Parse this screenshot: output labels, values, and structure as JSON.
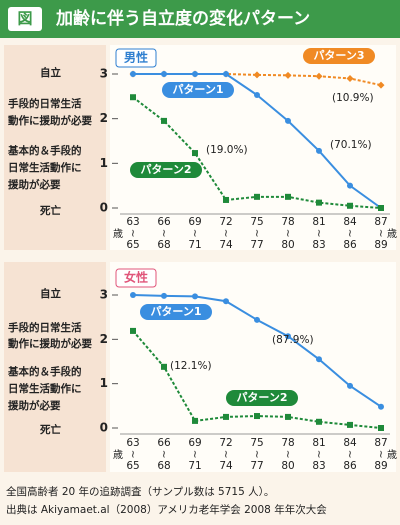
{
  "header": {
    "badge": "図",
    "title": "加齢に伴う自立度の変化パターン"
  },
  "chart_data": [
    {
      "type": "line",
      "panel_label": "男性",
      "age_unit": "歳",
      "categories": [
        "63～65",
        "66～68",
        "69～71",
        "72～74",
        "75～77",
        "78～80",
        "81～83",
        "84～86",
        "87～89"
      ],
      "ylim": [
        0,
        3
      ],
      "yticks": [
        0,
        1,
        2,
        3
      ],
      "levels": [
        [
          "死亡"
        ],
        [
          "基本的＆手段的",
          "日常生活動作に",
          "援助が必要"
        ],
        [
          "手段的日常生活",
          "動作に援助が必要"
        ],
        [
          "自立"
        ]
      ],
      "series": [
        {
          "name": "パターン3",
          "color": "#f08a24",
          "values": [
            3,
            3,
            3,
            3,
            2.98,
            2.97,
            2.95,
            2.9,
            2.75
          ]
        },
        {
          "name": "パターン1",
          "color": "#3a8ee0",
          "values": [
            3,
            3,
            3,
            3,
            2.53,
            1.95,
            1.28,
            0.5,
            0
          ]
        },
        {
          "name": "パターン2",
          "color": "#1f8a3a",
          "values": [
            2.48,
            1.95,
            1.23,
            0.18,
            0.25,
            0.25,
            0.12,
            0.05,
            0
          ]
        }
      ],
      "annotations": [
        "(10.9%)",
        "(70.1%)",
        "(19.0%)"
      ]
    },
    {
      "type": "line",
      "panel_label": "女性",
      "age_unit": "歳",
      "categories": [
        "63～65",
        "66～68",
        "69～71",
        "72～74",
        "75～77",
        "78～80",
        "81～83",
        "84～86",
        "87～89"
      ],
      "ylim": [
        0,
        3
      ],
      "yticks": [
        0,
        1,
        2,
        3
      ],
      "levels": [
        [
          "死亡"
        ],
        [
          "基本的＆手段的",
          "日常生活動作に",
          "援助が必要"
        ],
        [
          "手段的日常生活",
          "動作に援助が必要"
        ],
        [
          "自立"
        ]
      ],
      "series": [
        {
          "name": "パターン1",
          "color": "#3a8ee0",
          "values": [
            3,
            2.98,
            2.97,
            2.86,
            2.44,
            2.07,
            1.55,
            0.95,
            0.48
          ]
        },
        {
          "name": "パターン2",
          "color": "#1f8a3a",
          "values": [
            2.19,
            1.38,
            0.16,
            0.25,
            0.27,
            0.25,
            0.14,
            0.07,
            0
          ]
        }
      ],
      "annotations": [
        "(87.9%)",
        "(12.1%)"
      ]
    }
  ],
  "footer": [
    "全国高齢者 20 年の追跡調査（サンプル数は 5715 人）。",
    "出典は Akiyamaet.al（2008）アメリカ老年学会 2008 年年次大会"
  ]
}
